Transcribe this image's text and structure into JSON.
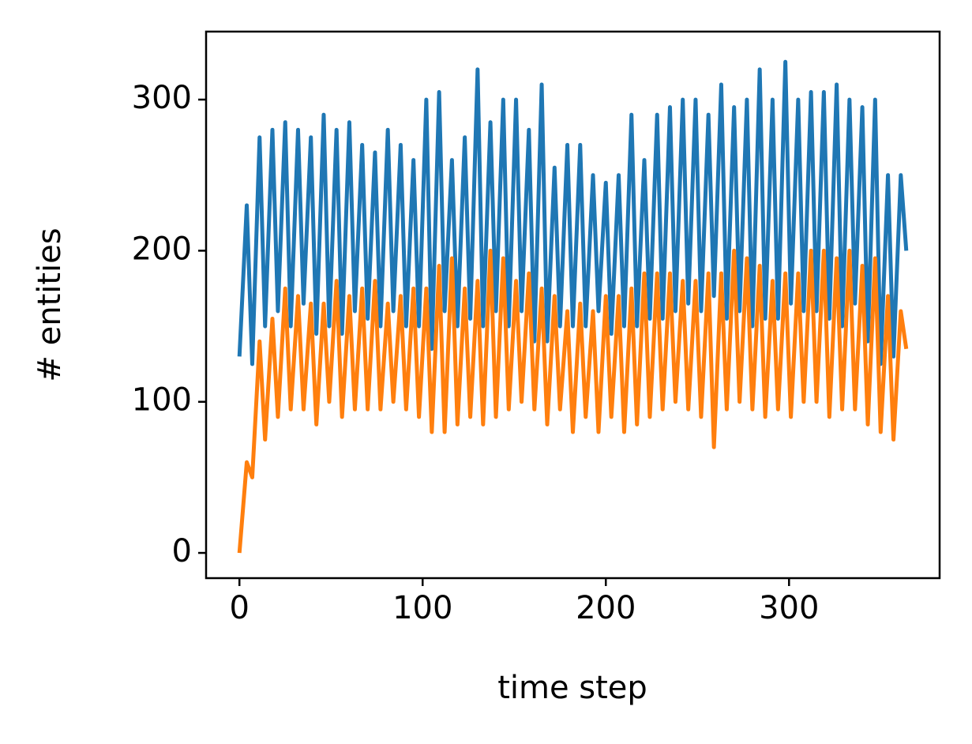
{
  "chart_data": {
    "type": "line",
    "xlabel": "time step",
    "ylabel": "# entities",
    "x": [
      0,
      4,
      7,
      11,
      14,
      18,
      21,
      25,
      28,
      32,
      35,
      39,
      42,
      46,
      49,
      53,
      56,
      60,
      63,
      67,
      70,
      74,
      77,
      81,
      84,
      88,
      91,
      95,
      98,
      102,
      105,
      109,
      112,
      116,
      119,
      123,
      126,
      130,
      133,
      137,
      140,
      144,
      147,
      151,
      154,
      158,
      161,
      165,
      168,
      172,
      175,
      179,
      182,
      186,
      189,
      193,
      196,
      200,
      203,
      207,
      210,
      214,
      217,
      221,
      224,
      228,
      231,
      235,
      238,
      242,
      245,
      249,
      252,
      256,
      259,
      263,
      266,
      270,
      273,
      277,
      280,
      284,
      287,
      291,
      294,
      298,
      301,
      305,
      308,
      312,
      315,
      319,
      322,
      326,
      329,
      333,
      336,
      340,
      343,
      347,
      350,
      354,
      357,
      361,
      364
    ],
    "series": [
      {
        "color": "#1f77b4",
        "values": [
          130,
          230,
          125,
          275,
          150,
          280,
          160,
          285,
          150,
          280,
          165,
          275,
          145,
          290,
          150,
          280,
          145,
          285,
          160,
          270,
          155,
          265,
          150,
          280,
          160,
          270,
          150,
          260,
          150,
          300,
          135,
          305,
          160,
          260,
          150,
          275,
          155,
          320,
          150,
          285,
          160,
          300,
          150,
          300,
          160,
          280,
          140,
          310,
          140,
          255,
          150,
          270,
          150,
          270,
          150,
          250,
          160,
          245,
          145,
          250,
          150,
          290,
          150,
          260,
          155,
          290,
          155,
          295,
          160,
          300,
          165,
          300,
          160,
          290,
          170,
          310,
          155,
          295,
          160,
          300,
          150,
          320,
          155,
          300,
          155,
          325,
          165,
          300,
          160,
          305,
          160,
          305,
          155,
          310,
          150,
          300,
          165,
          295,
          140,
          300,
          125,
          250,
          130,
          250,
          200
        ]
      },
      {
        "color": "#ff7f0e",
        "values": [
          0,
          60,
          50,
          140,
          75,
          155,
          90,
          175,
          95,
          170,
          95,
          165,
          85,
          165,
          100,
          180,
          90,
          170,
          95,
          175,
          95,
          180,
          95,
          165,
          100,
          170,
          95,
          175,
          90,
          175,
          80,
          190,
          80,
          195,
          85,
          175,
          90,
          180,
          85,
          200,
          90,
          195,
          95,
          180,
          100,
          185,
          95,
          175,
          85,
          170,
          95,
          160,
          80,
          165,
          90,
          160,
          80,
          170,
          90,
          170,
          80,
          175,
          85,
          185,
          90,
          185,
          95,
          185,
          100,
          180,
          95,
          180,
          90,
          185,
          70,
          185,
          95,
          200,
          100,
          195,
          95,
          190,
          90,
          180,
          95,
          185,
          90,
          185,
          100,
          200,
          100,
          200,
          90,
          195,
          95,
          200,
          95,
          190,
          85,
          195,
          80,
          170,
          75,
          160,
          135
        ]
      }
    ],
    "xlim": [
      -18.2,
      382.2
    ],
    "xticks": [
      0,
      100,
      200,
      300
    ],
    "ylim": [
      -16.7,
      345
    ],
    "yticks": [
      0,
      100,
      200,
      300
    ]
  }
}
